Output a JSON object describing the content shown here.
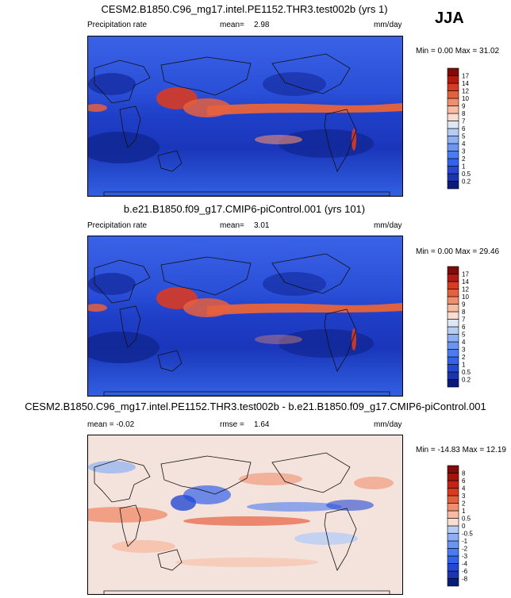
{
  "season": "JJA",
  "panels": [
    {
      "title": "CESM2.B1850.C96_mg17.intel.PE1152.THR3.test002b (yrs 1)",
      "left_label": "Precipitation rate",
      "mean_label": "mean=",
      "mean_value": "2.98",
      "units": "mm/day",
      "minmax": "Min =   0.00 Max = 31.02"
    },
    {
      "title": "b.e21.B1850.f09_g17.CMIP6-piControl.001 (yrs 101)",
      "left_label": "Precipitation rate",
      "mean_label": "mean=",
      "mean_value": "3.01",
      "units": "mm/day",
      "minmax": "Min =   0.00 Max = 29.46"
    },
    {
      "title": "CESM2.B1850.C96_mg17.intel.PE1152.THR3.test002b - b.e21.B1850.f09_g17.CMIP6-piControl.001",
      "mean_text": "mean = -0.02",
      "rmse_label": "rmse =",
      "rmse_value": "1.64",
      "units": "mm/day",
      "minmax": "Min = -14.83 Max = 12.19"
    }
  ],
  "chart_data": [
    {
      "type": "heatmap",
      "title": "CESM2.B1850.C96_mg17.intel.PE1152.THR3.test002b (yrs 1)",
      "variable": "Precipitation rate",
      "units": "mm/day",
      "mean": 2.98,
      "min": 0.0,
      "max": 31.02,
      "colorbar_levels": [
        "0.2",
        "0.5",
        "1",
        "2",
        "3",
        "4",
        "5",
        "6",
        "7",
        "8",
        "9",
        "10",
        "12",
        "14",
        "17"
      ],
      "colorbar_colors": [
        "#0a1c7a",
        "#1a35b0",
        "#2448d4",
        "#3363e8",
        "#4a7bf0",
        "#6a95f2",
        "#8db0f4",
        "#b5cdf5",
        "#dde7f6",
        "#f9ddd0",
        "#f6bca4",
        "#f08f6f",
        "#e5603e",
        "#d83a22",
        "#b51a10",
        "#7e0c08"
      ]
    },
    {
      "type": "heatmap",
      "title": "b.e21.B1850.f09_g17.CMIP6-piControl.001 (yrs 101)",
      "variable": "Precipitation rate",
      "units": "mm/day",
      "mean": 3.01,
      "min": 0.0,
      "max": 29.46,
      "colorbar_levels": [
        "0.2",
        "0.5",
        "1",
        "2",
        "3",
        "4",
        "5",
        "6",
        "7",
        "8",
        "9",
        "10",
        "12",
        "14",
        "17"
      ],
      "colorbar_colors": [
        "#0a1c7a",
        "#1a35b0",
        "#2448d4",
        "#3363e8",
        "#4a7bf0",
        "#6a95f2",
        "#8db0f4",
        "#b5cdf5",
        "#dde7f6",
        "#f9ddd0",
        "#f6bca4",
        "#f08f6f",
        "#e5603e",
        "#d83a22",
        "#b51a10",
        "#7e0c08"
      ]
    },
    {
      "type": "heatmap",
      "title": "CESM2.B1850.C96_mg17.intel.PE1152.THR3.test002b - b.e21.B1850.f09_g17.CMIP6-piControl.001",
      "units": "mm/day",
      "mean": -0.02,
      "rmse": 1.64,
      "min": -14.83,
      "max": 12.19,
      "colorbar_levels": [
        "-8",
        "-6",
        "-4",
        "-3",
        "-2",
        "-1",
        "-0.5",
        "0",
        "0.5",
        "1",
        "2",
        "3",
        "4",
        "6",
        "8"
      ],
      "colorbar_colors": [
        "#0a1c7a",
        "#1a35b0",
        "#2448d4",
        "#3363e8",
        "#4a7bf0",
        "#6a95f2",
        "#8db0f4",
        "#b5cdf5",
        "#f9ddd0",
        "#f6bca4",
        "#f08f6f",
        "#e5603e",
        "#d83a22",
        "#c42416",
        "#a3150c",
        "#7e0c08"
      ]
    }
  ]
}
